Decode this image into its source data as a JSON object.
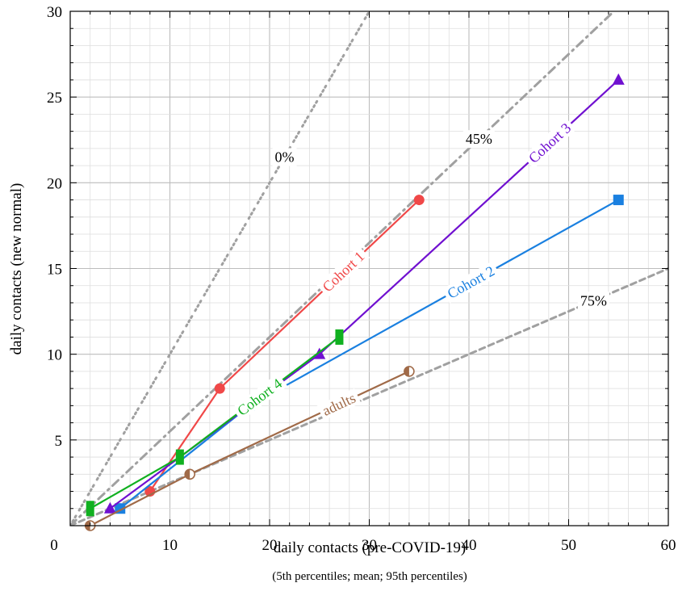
{
  "chart_data": {
    "type": "line",
    "xlabel": "daily contacts (pre-COVID-19)",
    "ylabel": "daily contacts (new normal)",
    "note": "(5th percentiles; mean; 95th percentiles)",
    "xlim": [
      0,
      60
    ],
    "ylim": [
      0,
      30
    ],
    "x_ticks": [
      0,
      10,
      20,
      30,
      40,
      50,
      60
    ],
    "y_ticks": [
      5,
      10,
      15,
      20,
      25,
      30
    ],
    "grid": true,
    "reference_lines": [
      {
        "label": "0%",
        "reduction": 0,
        "color": "#a0a0a0"
      },
      {
        "label": "45%",
        "reduction": 45,
        "color": "#a0a0a0"
      },
      {
        "label": "75%",
        "reduction": 75,
        "color": "#a0a0a0"
      }
    ],
    "series": [
      {
        "name": "Cohort 1",
        "color": "#f04848",
        "marker": "circle",
        "points": [
          [
            8,
            2
          ],
          [
            15,
            8
          ],
          [
            35,
            19
          ]
        ]
      },
      {
        "name": "Cohort 2",
        "color": "#1a80e0",
        "marker": "square",
        "points": [
          [
            5,
            1
          ],
          [
            18,
            7
          ],
          [
            55,
            19
          ]
        ]
      },
      {
        "name": "Cohort 3",
        "color": "#7010d0",
        "marker": "triangle",
        "points": [
          [
            4,
            1
          ],
          [
            25,
            10
          ],
          [
            55,
            26
          ]
        ]
      },
      {
        "name": "Cohort 4",
        "color": "#10b020",
        "marker": "rect",
        "points": [
          [
            2,
            1
          ],
          [
            11,
            4
          ],
          [
            27,
            11
          ]
        ]
      },
      {
        "name": "adults",
        "color": "#a06a48",
        "marker": "halfcircle",
        "points": [
          [
            2,
            0
          ],
          [
            12,
            3
          ],
          [
            34,
            9
          ]
        ]
      }
    ]
  }
}
